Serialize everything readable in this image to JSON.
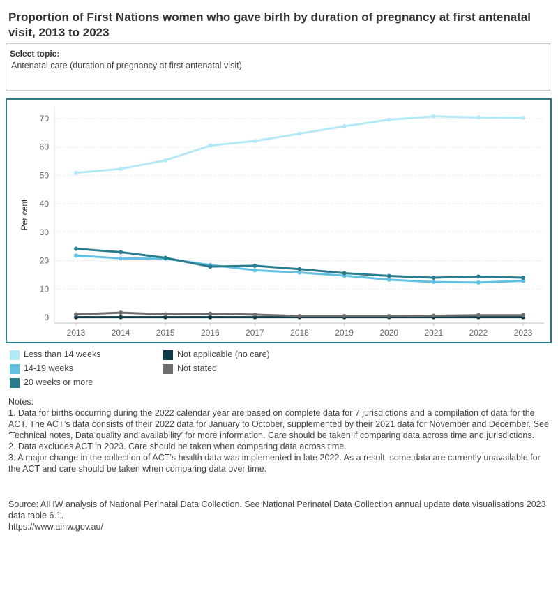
{
  "title": "Proportion of First Nations women who gave birth by duration of pregnancy at first antenatal visit, 2013 to 2023",
  "selector": {
    "label": "Select topic:",
    "value": "Antenatal care (duration of pregnancy at first antenatal visit)"
  },
  "chart_data": {
    "type": "line",
    "title": "",
    "xlabel": "",
    "ylabel": "Per cent",
    "x": [
      "2013",
      "2014",
      "2015",
      "2016",
      "2017",
      "2018",
      "2019",
      "2020",
      "2021",
      "2022",
      "2023"
    ],
    "ylim": [
      0,
      72
    ],
    "yticks": [
      0,
      10,
      20,
      30,
      40,
      50,
      60,
      70
    ],
    "grid": true,
    "legend_position": "bottom-left",
    "series": [
      {
        "name": "Less than 14 weeks",
        "color": "#b3e8f7",
        "values": [
          50.9,
          52.3,
          55.3,
          60.5,
          62.1,
          64.7,
          67.3,
          69.6,
          70.8,
          70.4,
          70.3
        ]
      },
      {
        "name": "14-19 weeks",
        "color": "#62c1e2",
        "values": [
          21.8,
          20.8,
          20.7,
          18.5,
          16.6,
          15.8,
          14.7,
          13.3,
          12.5,
          12.3,
          12.9
        ]
      },
      {
        "name": "20 weeks or more",
        "color": "#2c7c90",
        "values": [
          24.2,
          23.0,
          21.0,
          17.9,
          18.2,
          17.0,
          15.6,
          14.6,
          14.0,
          14.4,
          14.0
        ]
      },
      {
        "name": "Not applicable (no care)",
        "color": "#0e3a4a",
        "values": [
          0.1,
          0.1,
          0.1,
          0.1,
          0.1,
          0.1,
          0.1,
          0.1,
          0.1,
          0.1,
          0.1
        ]
      },
      {
        "name": "Not stated",
        "color": "#6d6d6d",
        "values": [
          1.1,
          1.7,
          1.1,
          1.3,
          1.0,
          0.5,
          0.5,
          0.5,
          0.6,
          0.8,
          0.8
        ]
      }
    ]
  },
  "legend": [
    {
      "label": "Less than 14 weeks",
      "color": "#b3e8f7"
    },
    {
      "label": "14-19 weeks",
      "color": "#62c1e2"
    },
    {
      "label": "20 weeks or more",
      "color": "#2c7c90"
    },
    {
      "label": "Not applicable (no care)",
      "color": "#0e3a4a"
    },
    {
      "label": "Not stated",
      "color": "#6d6d6d"
    }
  ],
  "notes": {
    "heading": "Notes:",
    "items": [
      "1. Data for births occurring during the 2022 calendar year are based on complete data for 7 jurisdictions and a compilation of data for the ACT. The ACT’s data consists of their 2022 data for January to October, supplemented by their 2021 data for November and December. See ‘Technical notes, Data quality and availability’ for more information. Care should be taken if comparing data across time and jurisdictions.",
      "2. Data excludes ACT in 2023. Care should be taken when comparing data across time.",
      "3. A major change in the collection of ACT’s health data was implemented in late 2022. As a result, some data are currently unavailable for the ACT and care should be taken when comparing data over time."
    ]
  },
  "source": {
    "text": "Source: AIHW analysis of National Perinatal Data Collection. See National Perinatal Data Collection annual update data visualisations 2023 data table 6.1.",
    "url": "https://www.aihw.gov.au/"
  }
}
